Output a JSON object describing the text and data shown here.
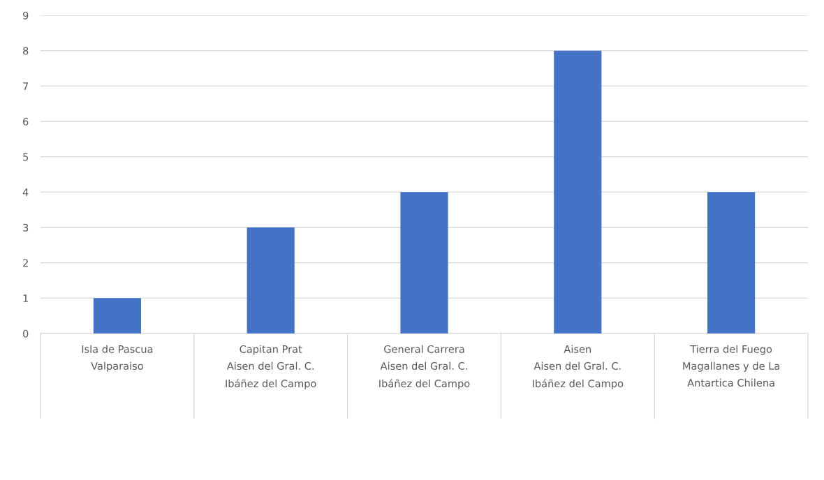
{
  "chart_data": {
    "type": "bar",
    "categories": [
      "Isla de Pascua\nValparaiso",
      "Capitan Prat\nAisen del Gral. C.\nIbáñez del Campo",
      "General Carrera\nAisen del Gral. C.\nIbáñez del Campo",
      "Aisen\nAisen del Gral. C.\nIbáñez del Campo",
      "Tierra del Fuego\nMagallanes y de La\nAntartica Chilena"
    ],
    "values": [
      1,
      3,
      4,
      8,
      4
    ],
    "color": "#4472c4",
    "ylim": [
      0,
      9
    ],
    "yticks": [
      0,
      1,
      2,
      3,
      4,
      5,
      6,
      7,
      8,
      9
    ],
    "grid": "y",
    "legend": false
  }
}
